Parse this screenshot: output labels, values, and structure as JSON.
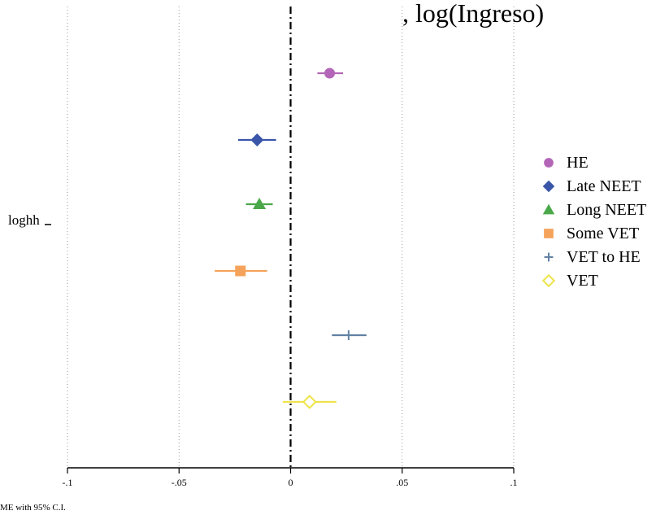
{
  "chart_data": {
    "type": "scatter",
    "title": "loghh (log(Ingreso)",
    "title_visible": ", log(Ingreso)",
    "ylabel_category": "loghh",
    "xlim": [
      -0.1,
      0.1
    ],
    "xticks": [
      -0.1,
      -0.05,
      0,
      0.05,
      0.1
    ],
    "xtick_labels": [
      "-.1",
      "-.05",
      "0",
      ".05",
      ".1"
    ],
    "grid": true,
    "zero_line": true,
    "legend_position": "right",
    "note": "AME with 95% C.I.",
    "series": [
      {
        "name": "HE",
        "marker": "circle",
        "color": "#b366b8",
        "estimate": 0.0175,
        "ci": [
          0.012,
          0.0235
        ]
      },
      {
        "name": "Late NEET",
        "marker": "diamond",
        "color": "#3a56a8",
        "estimate": -0.015,
        "ci": [
          -0.0235,
          -0.0065
        ]
      },
      {
        "name": "Long NEET",
        "marker": "triangle",
        "color": "#4aa84a",
        "estimate": -0.014,
        "ci": [
          -0.02,
          -0.008
        ]
      },
      {
        "name": "Some VET",
        "marker": "square",
        "color": "#f5a35a",
        "estimate": -0.0225,
        "ci": [
          -0.034,
          -0.0105
        ]
      },
      {
        "name": "VET to HE",
        "marker": "plus",
        "color": "#6181a4",
        "estimate": 0.026,
        "ci": [
          0.0185,
          0.034
        ]
      },
      {
        "name": "VET",
        "marker": "diamond-hollow",
        "color": "#eee44a",
        "estimate": 0.0085,
        "ci": [
          -0.0035,
          0.0205
        ]
      }
    ]
  }
}
